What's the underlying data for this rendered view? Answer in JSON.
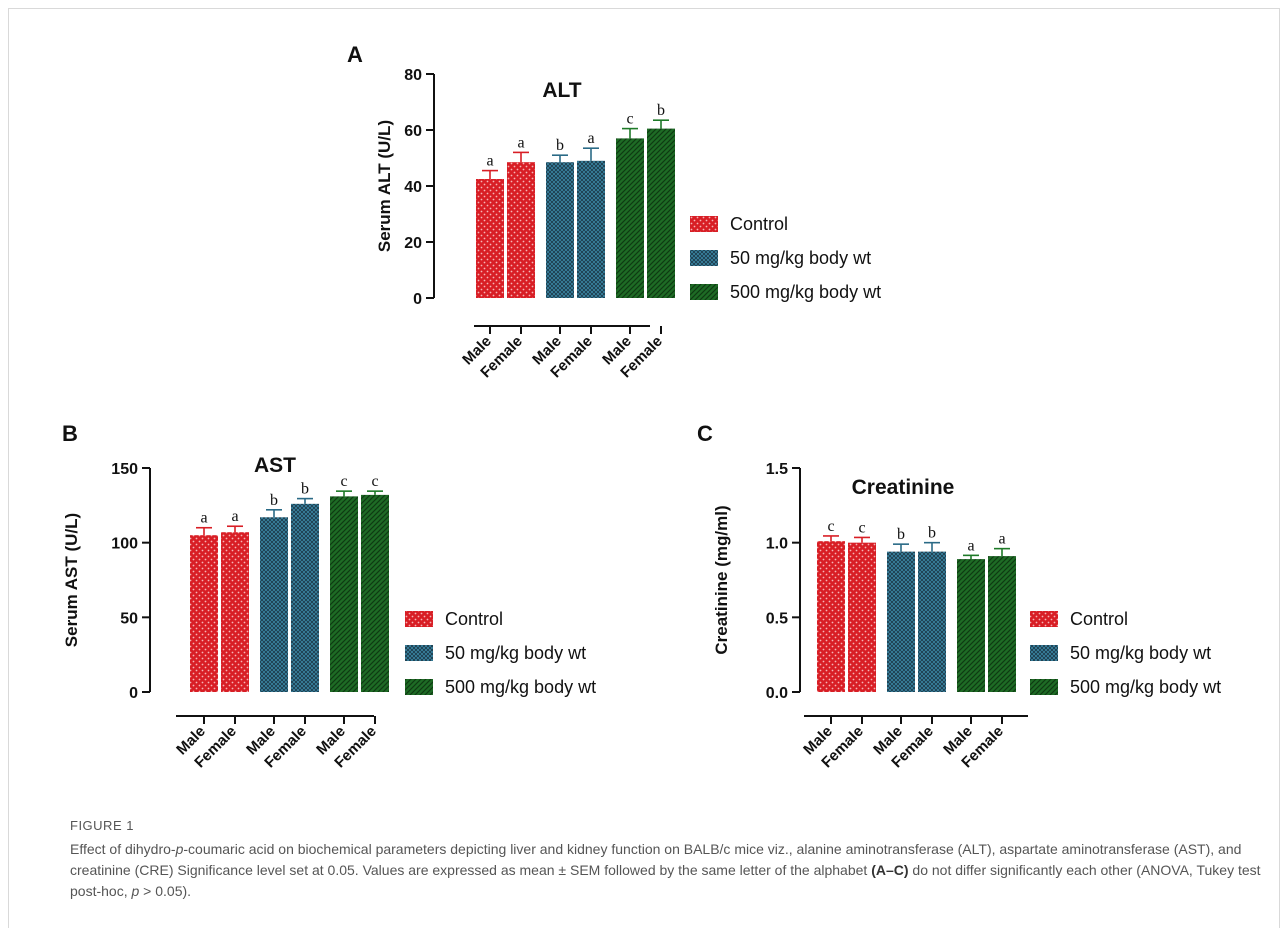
{
  "figure": {
    "label": "FIGURE 1",
    "caption_parts": [
      {
        "t": "Effect of dihydro-"
      },
      {
        "t": "p",
        "i": true
      },
      {
        "t": "-coumaric acid on biochemical parameters depicting liver and kidney function on BALB/c mice viz., alanine aminotransferase (ALT), aspartate aminotransferase (AST), and creatinine (CRE) Significance level set at 0.05. Values are expressed as mean ± SEM followed by the same letter of the alphabet "
      },
      {
        "t": "(A–C)",
        "b": true
      },
      {
        "t": " do not differ significantly each other (ANOVA, Tukey test post-hoc, "
      },
      {
        "t": "p",
        "i": true
      },
      {
        "t": " > 0.05)."
      }
    ]
  },
  "legend": {
    "entries": [
      "Control",
      "50 mg/kg body wt",
      "500 mg/kg body wt"
    ]
  },
  "colors": {
    "control": "#d81e25",
    "dose50": "#1c3a4a",
    "dose500": "#1e6b25",
    "error_control": "#d81e25",
    "error_dose50": "#2a6a86",
    "error_dose500": "#1e7a28"
  },
  "chart_data": [
    {
      "panel": "A",
      "type": "bar",
      "title": "ALT",
      "ylabel": "Serum ALT (U/L)",
      "ylim": [
        0,
        80
      ],
      "yticks": [
        "0",
        "20",
        "40",
        "60",
        "80"
      ],
      "categories": [
        "Male",
        "Female",
        "Male",
        "Female",
        "Male",
        "Female"
      ],
      "groups": [
        "Control",
        "Control",
        "50 mg/kg body wt",
        "50 mg/kg body wt",
        "500 mg/kg body wt",
        "500 mg/kg body wt"
      ],
      "values": [
        42.5,
        48.5,
        48.5,
        49,
        57,
        60.5
      ],
      "errors": [
        3,
        3.5,
        2.5,
        4.5,
        3.5,
        3
      ],
      "letters": [
        "a",
        "a",
        "b",
        "a",
        "c",
        "b"
      ]
    },
    {
      "panel": "B",
      "type": "bar",
      "title": "AST",
      "ylabel": "Serum AST (U/L)",
      "ylim": [
        0,
        150
      ],
      "yticks": [
        "0",
        "50",
        "100",
        "150"
      ],
      "categories": [
        "Male",
        "Female",
        "Male",
        "Female",
        "Male",
        "Female"
      ],
      "groups": [
        "Control",
        "Control",
        "50 mg/kg body wt",
        "50 mg/kg body wt",
        "500 mg/kg body wt",
        "500 mg/kg body wt"
      ],
      "values": [
        105,
        107,
        117,
        126,
        131,
        132
      ],
      "errors": [
        5,
        4,
        5,
        3.5,
        3.5,
        2.5
      ],
      "letters": [
        "a",
        "a",
        "b",
        "b",
        "c",
        "c"
      ]
    },
    {
      "panel": "C",
      "type": "bar",
      "title": "Creatinine",
      "ylabel": "Creatinine (mg/ml)",
      "ylim": [
        0,
        1.5
      ],
      "yticks": [
        "0.0",
        "0.5",
        "1.0",
        "1.5"
      ],
      "categories": [
        "Male",
        "Female",
        "Male",
        "Female",
        "Male",
        "Female"
      ],
      "groups": [
        "Control",
        "Control",
        "50 mg/kg body wt",
        "50 mg/kg body wt",
        "500 mg/kg body wt",
        "500 mg/kg body wt"
      ],
      "values": [
        1.01,
        1.0,
        0.94,
        0.94,
        0.89,
        0.91
      ],
      "errors": [
        0.035,
        0.035,
        0.05,
        0.06,
        0.025,
        0.05
      ],
      "letters": [
        "c",
        "c",
        "b",
        "b",
        "a",
        "a"
      ]
    }
  ]
}
